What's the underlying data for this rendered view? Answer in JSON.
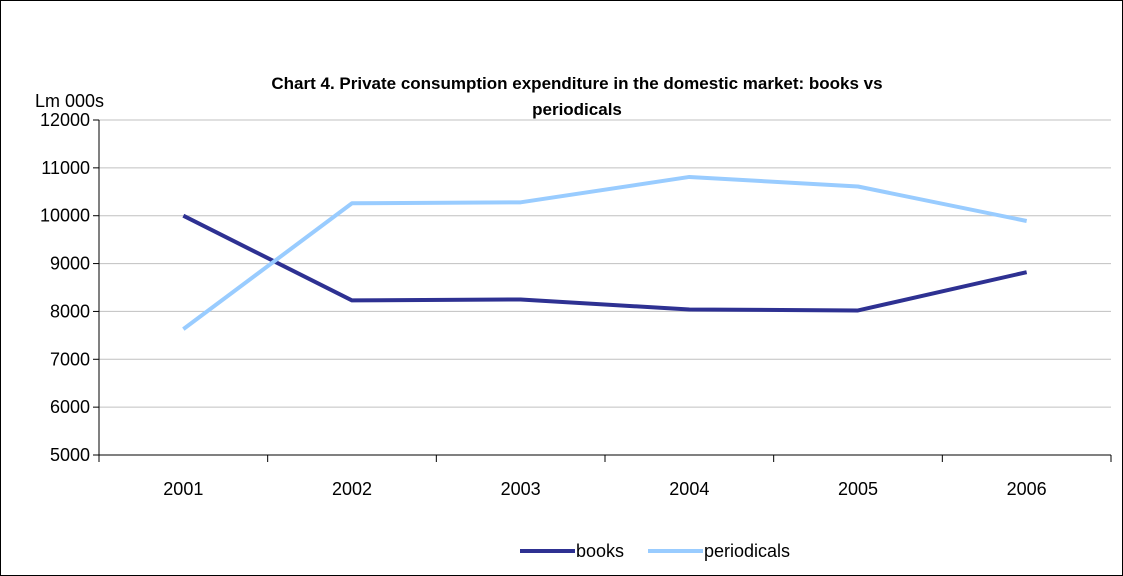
{
  "chart_data": {
    "type": "line",
    "title_line1": "Chart 4.  Private consumption expenditure in the domestic market: books vs",
    "title_line2": "periodicals",
    "unit_label": "Lm 000s",
    "categories": [
      "2001",
      "2002",
      "2003",
      "2004",
      "2005",
      "2006"
    ],
    "ylim": [
      5000,
      12000
    ],
    "yticks": [
      "5000",
      "6000",
      "7000",
      "8000",
      "9000",
      "10000",
      "11000",
      "12000"
    ],
    "grid": true,
    "legend_position": "bottom",
    "series": [
      {
        "name": "books",
        "color": "#2e3192",
        "values": [
          10000,
          8230,
          8250,
          8040,
          8020,
          8820
        ]
      },
      {
        "name": "periodicals",
        "color": "#99ccff",
        "values": [
          7630,
          10260,
          10280,
          10810,
          10610,
          9890
        ]
      }
    ]
  }
}
